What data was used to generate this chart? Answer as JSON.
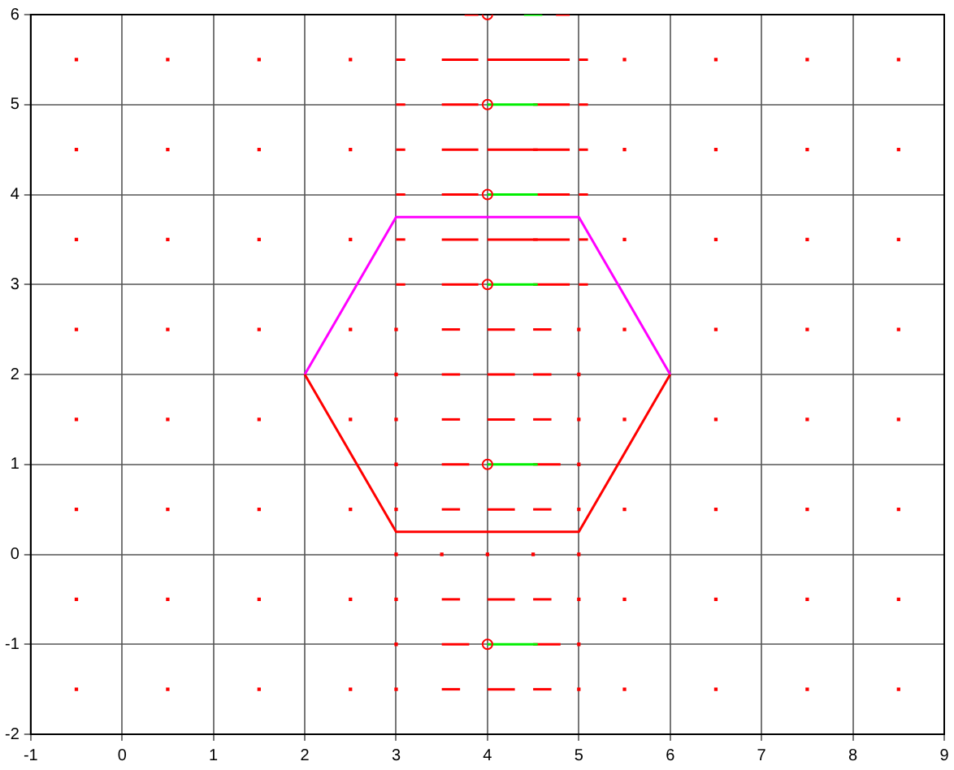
{
  "chart_data": {
    "type": "line",
    "xlim": [
      -1,
      9
    ],
    "ylim": [
      -2,
      6
    ],
    "xticks": [
      -1,
      0,
      1,
      2,
      3,
      4,
      5,
      6,
      7,
      8,
      9
    ],
    "yticks": [
      -2,
      -1,
      0,
      1,
      2,
      3,
      4,
      5,
      6
    ],
    "grid": true,
    "legend": false,
    "line_style": "solid",
    "series": [
      {
        "type": "scatter",
        "marker": "square",
        "color": "#ff0000",
        "x": [
          -0.5,
          0.5,
          1.5,
          2.5,
          5.5,
          6.5,
          7.5,
          8.5,
          -0.5,
          0.5,
          1.5,
          2.5,
          5.5,
          6.5,
          7.5,
          8.5,
          -0.5,
          0.5,
          1.5,
          2.5,
          5.5,
          6.5,
          7.5,
          8.5,
          -0.5,
          0.5,
          1.5,
          2.5,
          5.5,
          6.5,
          7.5,
          8.5,
          -0.5,
          0.5,
          1.5,
          2.5,
          5.5,
          6.5,
          7.5,
          8.5,
          -0.5,
          0.5,
          1.5,
          2.5,
          5.5,
          6.5,
          7.5,
          8.5,
          -0.5,
          0.5,
          1.5,
          2.5,
          5.5,
          6.5,
          7.5,
          8.5,
          -0.5,
          0.5,
          1.5,
          2.5,
          5.5,
          6.5,
          7.5,
          8.5,
          3,
          5,
          3,
          5,
          3,
          5,
          3,
          5,
          3,
          5,
          3,
          3.5,
          4,
          4.5,
          5,
          3,
          5,
          3,
          5,
          3,
          5
        ],
        "values": [
          5.5,
          5.5,
          5.5,
          5.5,
          5.5,
          5.5,
          5.5,
          5.5,
          4.5,
          4.5,
          4.5,
          4.5,
          4.5,
          4.5,
          4.5,
          4.5,
          3.5,
          3.5,
          3.5,
          3.5,
          3.5,
          3.5,
          3.5,
          3.5,
          2.5,
          2.5,
          2.5,
          2.5,
          2.5,
          2.5,
          2.5,
          2.5,
          1.5,
          1.5,
          1.5,
          1.5,
          1.5,
          1.5,
          1.5,
          1.5,
          0.5,
          0.5,
          0.5,
          0.5,
          0.5,
          0.5,
          0.5,
          0.5,
          -0.5,
          -0.5,
          -0.5,
          -0.5,
          -0.5,
          -0.5,
          -0.5,
          -0.5,
          -1.5,
          -1.5,
          -1.5,
          -1.5,
          -1.5,
          -1.5,
          -1.5,
          -1.5,
          2.5,
          2.5,
          2,
          2,
          1.5,
          1.5,
          1,
          1,
          0.5,
          0.5,
          0,
          0,
          0,
          0,
          0,
          -0.5,
          -0.5,
          -1,
          -1,
          -1.5,
          -1.5
        ]
      },
      {
        "color": "#ff0000",
        "x": [
          3.75,
          3.9
        ],
        "values": [
          6,
          6
        ]
      },
      {
        "color": "#ff0000",
        "x": [
          4.75,
          4.9
        ],
        "values": [
          6,
          6
        ]
      },
      {
        "color": "#ff0000",
        "x": [
          3,
          3.1
        ],
        "values": [
          5.5,
          5.5
        ]
      },
      {
        "color": "#ff0000",
        "x": [
          3.5,
          3.9
        ],
        "values": [
          5.5,
          5.5
        ]
      },
      {
        "color": "#ff0000",
        "x": [
          4,
          4.55
        ],
        "values": [
          5.5,
          5.5
        ]
      },
      {
        "color": "#ff0000",
        "x": [
          4.5,
          4.9
        ],
        "values": [
          5.5,
          5.5
        ]
      },
      {
        "color": "#ff0000",
        "x": [
          5,
          5.1
        ],
        "values": [
          5.5,
          5.5
        ]
      },
      {
        "color": "#ff0000",
        "x": [
          3,
          3.1
        ],
        "values": [
          5,
          5
        ]
      },
      {
        "color": "#ff0000",
        "x": [
          3.5,
          3.9
        ],
        "values": [
          5,
          5
        ]
      },
      {
        "color": "#ff0000",
        "x": [
          4.5,
          4.9
        ],
        "values": [
          5,
          5
        ]
      },
      {
        "color": "#ff0000",
        "x": [
          5,
          5.1
        ],
        "values": [
          5,
          5
        ]
      },
      {
        "color": "#ff0000",
        "x": [
          3,
          3.1
        ],
        "values": [
          4.5,
          4.5
        ]
      },
      {
        "color": "#ff0000",
        "x": [
          3.5,
          3.9
        ],
        "values": [
          4.5,
          4.5
        ]
      },
      {
        "color": "#ff0000",
        "x": [
          4,
          4.55
        ],
        "values": [
          4.5,
          4.5
        ]
      },
      {
        "color": "#ff0000",
        "x": [
          4.5,
          4.9
        ],
        "values": [
          4.5,
          4.5
        ]
      },
      {
        "color": "#ff0000",
        "x": [
          5,
          5.1
        ],
        "values": [
          4.5,
          4.5
        ]
      },
      {
        "color": "#ff0000",
        "x": [
          3,
          3.1
        ],
        "values": [
          4,
          4
        ]
      },
      {
        "color": "#ff0000",
        "x": [
          3.5,
          3.9
        ],
        "values": [
          4,
          4
        ]
      },
      {
        "color": "#ff0000",
        "x": [
          4.5,
          4.9
        ],
        "values": [
          4,
          4
        ]
      },
      {
        "color": "#ff0000",
        "x": [
          5,
          5.1
        ],
        "values": [
          4,
          4
        ]
      },
      {
        "color": "#ff0000",
        "x": [
          3,
          3.1
        ],
        "values": [
          3.5,
          3.5
        ]
      },
      {
        "color": "#ff0000",
        "x": [
          3.5,
          3.9
        ],
        "values": [
          3.5,
          3.5
        ]
      },
      {
        "color": "#ff0000",
        "x": [
          4,
          4.55
        ],
        "values": [
          3.5,
          3.5
        ]
      },
      {
        "color": "#ff0000",
        "x": [
          4.5,
          4.9
        ],
        "values": [
          3.5,
          3.5
        ]
      },
      {
        "color": "#ff0000",
        "x": [
          5,
          5.1
        ],
        "values": [
          3.5,
          3.5
        ]
      },
      {
        "color": "#ff0000",
        "x": [
          3,
          3.1
        ],
        "values": [
          3,
          3
        ]
      },
      {
        "color": "#ff0000",
        "x": [
          3.5,
          3.9
        ],
        "values": [
          3,
          3
        ]
      },
      {
        "color": "#ff0000",
        "x": [
          4.5,
          4.9
        ],
        "values": [
          3,
          3
        ]
      },
      {
        "color": "#ff0000",
        "x": [
          5,
          5.1
        ],
        "values": [
          3,
          3
        ]
      },
      {
        "color": "#ff0000",
        "x": [
          3.5,
          3.7
        ],
        "values": [
          2.5,
          2.5
        ]
      },
      {
        "color": "#ff0000",
        "x": [
          4,
          4.3
        ],
        "values": [
          2.5,
          2.5
        ]
      },
      {
        "color": "#ff0000",
        "x": [
          4.5,
          4.7
        ],
        "values": [
          2.5,
          2.5
        ]
      },
      {
        "color": "#ff0000",
        "x": [
          3.5,
          3.7
        ],
        "values": [
          2,
          2
        ]
      },
      {
        "color": "#ff0000",
        "x": [
          4,
          4.3
        ],
        "values": [
          2,
          2
        ]
      },
      {
        "color": "#ff0000",
        "x": [
          4.5,
          4.7
        ],
        "values": [
          2,
          2
        ]
      },
      {
        "color": "#ff0000",
        "x": [
          3.5,
          3.7
        ],
        "values": [
          1.5,
          1.5
        ]
      },
      {
        "color": "#ff0000",
        "x": [
          4,
          4.3
        ],
        "values": [
          1.5,
          1.5
        ]
      },
      {
        "color": "#ff0000",
        "x": [
          4.5,
          4.7
        ],
        "values": [
          1.5,
          1.5
        ]
      },
      {
        "color": "#ff0000",
        "x": [
          3.5,
          3.8
        ],
        "values": [
          1,
          1
        ]
      },
      {
        "color": "#ff0000",
        "x": [
          4.5,
          4.8
        ],
        "values": [
          1,
          1
        ]
      },
      {
        "color": "#ff0000",
        "x": [
          3.5,
          3.7
        ],
        "values": [
          0.5,
          0.5
        ]
      },
      {
        "color": "#ff0000",
        "x": [
          4,
          4.3
        ],
        "values": [
          0.5,
          0.5
        ]
      },
      {
        "color": "#ff0000",
        "x": [
          4.5,
          4.7
        ],
        "values": [
          0.5,
          0.5
        ]
      },
      {
        "color": "#ff0000",
        "x": [
          3.5,
          3.7
        ],
        "values": [
          -0.5,
          -0.5
        ]
      },
      {
        "color": "#ff0000",
        "x": [
          4,
          4.3
        ],
        "values": [
          -0.5,
          -0.5
        ]
      },
      {
        "color": "#ff0000",
        "x": [
          4.5,
          4.7
        ],
        "values": [
          -0.5,
          -0.5
        ]
      },
      {
        "color": "#ff0000",
        "x": [
          3.5,
          3.8
        ],
        "values": [
          -1,
          -1
        ]
      },
      {
        "color": "#ff0000",
        "x": [
          4.5,
          4.8
        ],
        "values": [
          -1,
          -1
        ]
      },
      {
        "color": "#ff0000",
        "x": [
          3.5,
          3.7
        ],
        "values": [
          -1.5,
          -1.5
        ]
      },
      {
        "color": "#ff0000",
        "x": [
          4,
          4.3
        ],
        "values": [
          -1.5,
          -1.5
        ]
      },
      {
        "color": "#ff0000",
        "x": [
          4.5,
          4.7
        ],
        "values": [
          -1.5,
          -1.5
        ]
      },
      {
        "color": "#00ee00",
        "x": [
          4.4,
          4.6
        ],
        "values": [
          6,
          6
        ]
      },
      {
        "color": "#00ee00",
        "x": [
          4,
          4.55
        ],
        "values": [
          5,
          5
        ]
      },
      {
        "color": "#00ee00",
        "x": [
          4,
          4.55
        ],
        "values": [
          4,
          4
        ]
      },
      {
        "color": "#00ee00",
        "x": [
          4,
          4.55
        ],
        "values": [
          3,
          3
        ]
      },
      {
        "color": "#00ee00",
        "x": [
          4,
          4.55
        ],
        "values": [
          1,
          1
        ]
      },
      {
        "color": "#00ee00",
        "x": [
          4,
          4.55
        ],
        "values": [
          -1,
          -1
        ]
      },
      {
        "type": "scatter",
        "marker": "circle",
        "color": "#ff0000",
        "x": [
          4,
          4,
          4,
          4,
          4,
          4
        ],
        "values": [
          6,
          5,
          4,
          3,
          1,
          -1
        ]
      },
      {
        "color": "#ff00ff",
        "x": [
          2,
          3,
          5,
          6
        ],
        "values": [
          2,
          3.75,
          3.75,
          2
        ]
      },
      {
        "color": "#ff0000",
        "x": [
          2,
          3,
          5,
          6
        ],
        "values": [
          2,
          0.25,
          0.25,
          2
        ]
      }
    ]
  }
}
